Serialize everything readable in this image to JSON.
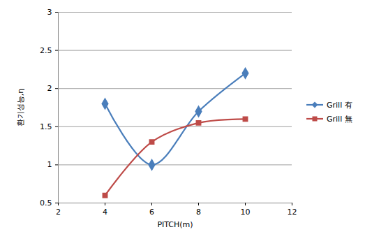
{
  "chart_data": {
    "type": "line",
    "x_label": "PITCH(m)",
    "y_label": "환기성능,η",
    "x": [
      4,
      6,
      8,
      10
    ],
    "series": [
      {
        "name": "Grill 有",
        "color": "#4a7ebb",
        "marker": "diamond",
        "line_style": "smooth",
        "values": [
          1.8,
          1.0,
          1.7,
          2.2
        ]
      },
      {
        "name": "Grill 無",
        "color": "#be4b48",
        "marker": "square",
        "line_style": "smooth",
        "values": [
          0.6,
          1.3,
          1.55,
          1.6
        ]
      }
    ],
    "xlim": [
      2,
      12
    ],
    "xticks": [
      2,
      4,
      6,
      8,
      10,
      12
    ],
    "ylim": [
      0.5,
      3
    ],
    "yticks": [
      0.5,
      1,
      1.5,
      2,
      2.5,
      3
    ],
    "grid": true,
    "legend": "right"
  }
}
